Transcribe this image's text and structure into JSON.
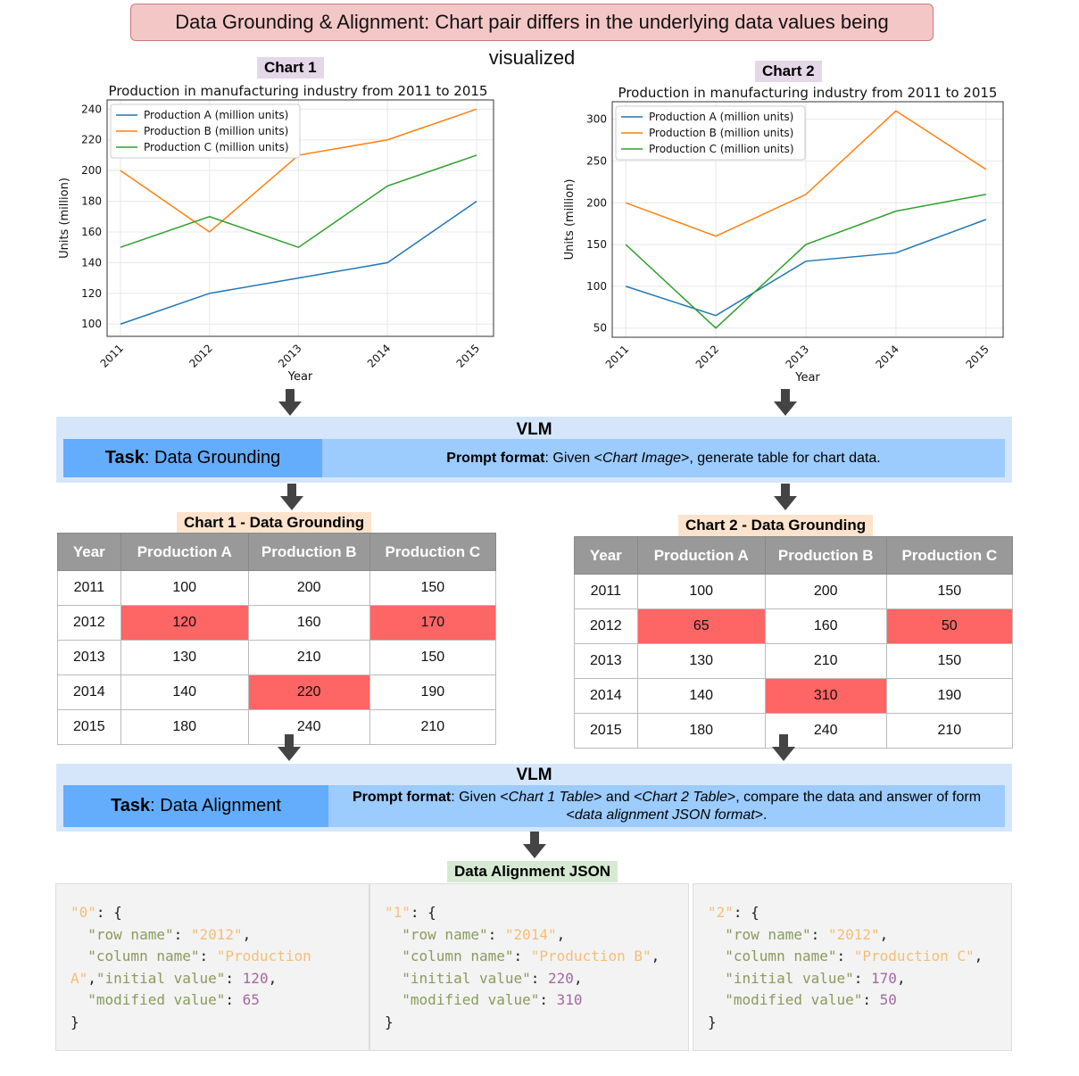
{
  "banner": "Data Grounding & Alignment: Chart pair differs in the underlying data values being visualized",
  "chart_data": [
    {
      "type": "line",
      "label": "Chart 1",
      "title": "Production in manufacturing industry from 2011 to 2015",
      "xlabel": "Year",
      "ylabel": "Units (million)",
      "x": [
        2011,
        2012,
        2013,
        2014,
        2015
      ],
      "yticks": [
        100,
        120,
        140,
        160,
        180,
        200,
        220,
        240
      ],
      "ylim": [
        92,
        246
      ],
      "grid": true,
      "legend": "top-left",
      "series": [
        {
          "name": "Production A (million units)",
          "color": "#1f77b4",
          "values": [
            100,
            120,
            130,
            140,
            180
          ]
        },
        {
          "name": "Production B (million units)",
          "color": "#ff7f0e",
          "values": [
            200,
            160,
            210,
            220,
            240
          ]
        },
        {
          "name": "Production C (million units)",
          "color": "#2ca02c",
          "values": [
            150,
            170,
            150,
            190,
            210
          ]
        }
      ]
    },
    {
      "type": "line",
      "label": "Chart 2",
      "title": "Production in manufacturing industry from 2011 to 2015",
      "xlabel": "Year",
      "ylabel": "Units (million)",
      "x": [
        2011,
        2012,
        2013,
        2014,
        2015
      ],
      "yticks": [
        50,
        100,
        150,
        200,
        250,
        300
      ],
      "ylim": [
        39,
        321
      ],
      "grid": true,
      "legend": "top-left",
      "series": [
        {
          "name": "Production A (million units)",
          "color": "#1f77b4",
          "values": [
            100,
            65,
            130,
            140,
            180
          ]
        },
        {
          "name": "Production B (million units)",
          "color": "#ff7f0e",
          "values": [
            200,
            160,
            210,
            310,
            240
          ]
        },
        {
          "name": "Production C (million units)",
          "color": "#2ca02c",
          "values": [
            150,
            50,
            150,
            190,
            210
          ]
        }
      ]
    }
  ],
  "vlm1": {
    "title": "VLM",
    "task_bold": "Task",
    "task": ": Data Grounding",
    "prompt_bold": "Prompt format",
    "prompt_pre": ": Given <",
    "prompt_em": "Chart Image",
    "prompt_post": ">, generate table for chart data."
  },
  "tables": [
    {
      "title": "Chart 1 - Data Grounding",
      "headers": [
        "Year",
        "Production A",
        "Production B",
        "Production C"
      ],
      "rows": [
        [
          "2011",
          "100",
          "200",
          "150"
        ],
        [
          "2012",
          "120",
          "160",
          "170"
        ],
        [
          "2013",
          "130",
          "210",
          "150"
        ],
        [
          "2014",
          "140",
          "220",
          "190"
        ],
        [
          "2015",
          "180",
          "240",
          "210"
        ]
      ],
      "highlighted": [
        [
          1,
          1
        ],
        [
          1,
          3
        ],
        [
          3,
          2
        ]
      ]
    },
    {
      "title": "Chart 2 - Data Grounding",
      "headers": [
        "Year",
        "Production A",
        "Production B",
        "Production C"
      ],
      "rows": [
        [
          "2011",
          "100",
          "200",
          "150"
        ],
        [
          "2012",
          "65",
          "160",
          "50"
        ],
        [
          "2013",
          "130",
          "210",
          "150"
        ],
        [
          "2014",
          "140",
          "310",
          "190"
        ],
        [
          "2015",
          "180",
          "240",
          "210"
        ]
      ],
      "highlighted": [
        [
          1,
          1
        ],
        [
          1,
          3
        ],
        [
          3,
          2
        ]
      ]
    }
  ],
  "highlight_color": "#fe6565",
  "vlm2": {
    "title": "VLM",
    "task_bold": "Task",
    "task": ": Data Alignment",
    "prompt_bold": "Prompt format",
    "p1": ": Given <",
    "e1": "Chart 1 Table",
    "p2": "> and <",
    "e2": "Chart 2 Table",
    "p3": ">, compare the data and answer of form",
    "p4": "<",
    "e3": "data alignment JSON format",
    "p5": ">."
  },
  "json_title": "Data Alignment JSON",
  "alignment": [
    {
      "key": "\"0\"",
      "row": "\"2012\"",
      "col": "\"Production",
      "col2": "A\"",
      "initial": "120",
      "modified": "65"
    },
    {
      "key": "\"1\"",
      "row": "\"2014\"",
      "col": "\"Production B\"",
      "initial": "220",
      "modified": "310"
    },
    {
      "key": "\"2\"",
      "row": "\"2012\"",
      "col": "\"Production C\"",
      "initial": "170",
      "modified": "50"
    }
  ]
}
